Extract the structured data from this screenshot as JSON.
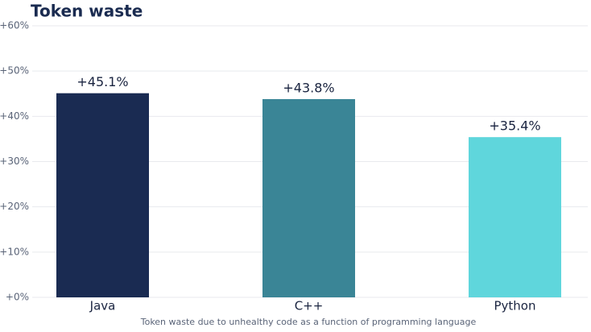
{
  "chart_data": {
    "type": "bar",
    "title": "Token waste",
    "caption": "Token waste due to unhealthy code as a function of programming language",
    "categories": [
      "Java",
      "C++",
      "Python"
    ],
    "values": [
      45.1,
      43.8,
      35.4
    ],
    "value_labels": [
      "+45.1%",
      "+43.8%",
      "+35.4%"
    ],
    "colors": [
      "#1a2b52",
      "#3a8596",
      "#5fd6dc"
    ],
    "ylim": [
      0,
      60
    ],
    "yticks": [
      {
        "value": 0,
        "label": "+0%"
      },
      {
        "value": 10,
        "label": "+10%"
      },
      {
        "value": 20,
        "label": "+20%"
      },
      {
        "value": 30,
        "label": "+30%"
      },
      {
        "value": 40,
        "label": "+40%"
      },
      {
        "value": 50,
        "label": "+50%"
      },
      {
        "value": 60,
        "label": "+60%"
      }
    ],
    "grid": true
  }
}
